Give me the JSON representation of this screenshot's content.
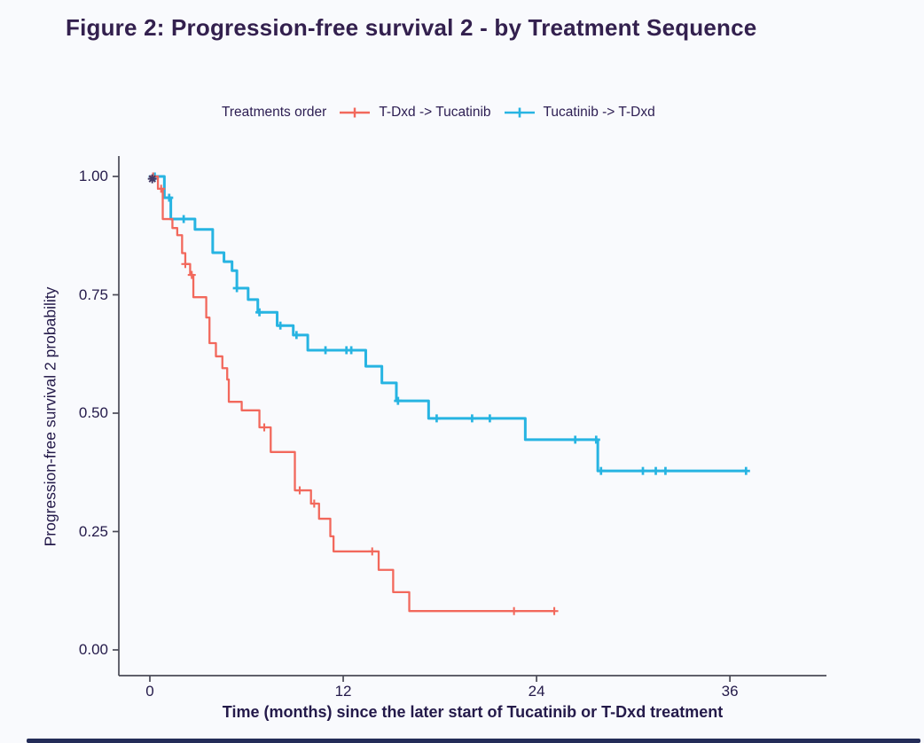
{
  "page": {
    "title": "Figure 2: Progression-free survival 2 - by Treatment Sequence"
  },
  "colors": {
    "title_text": "#33204e",
    "axis_text": "#241a4a",
    "axis_line": "#4a4a56",
    "series_tdxd_first": "#f2685c",
    "series_tucatinib_first": "#27b4e2",
    "bottom_bar": "#232c58"
  },
  "chart_data": {
    "type": "line",
    "subtype": "kaplan-meier-step",
    "title": "Figure 2: Progression-free survival 2 - by Treatment Sequence",
    "legend_title": "Treatments order",
    "legend_position": "top",
    "xlabel": "Time (months) since the later start of Tucatinib or T-Dxd treatment",
    "ylabel": "Progression-free survival 2 probability",
    "xlim": [
      0,
      42
    ],
    "ylim": [
      0.0,
      1.0
    ],
    "grid": false,
    "x_ticks": [
      {
        "label": "0",
        "value": 0
      },
      {
        "label": "12",
        "value": 12
      },
      {
        "label": "24",
        "value": 24
      },
      {
        "label": "36",
        "value": 36
      }
    ],
    "y_ticks": [
      {
        "label": "1.00",
        "value": 1.0
      },
      {
        "label": "0.75",
        "value": 0.75
      },
      {
        "label": "0.50",
        "value": 0.5
      },
      {
        "label": "0.25",
        "value": 0.25
      },
      {
        "label": "0.00",
        "value": 0.0
      }
    ],
    "overlap_marker": {
      "month": 0.15,
      "prob": 0.995,
      "color": "#453a66"
    },
    "series": [
      {
        "name": "Tucatinib -> T-Dxd",
        "color": "#27b4e2",
        "line_width": 3,
        "start": [
          0,
          1.0
        ],
        "steps": [
          [
            0.9,
            0.955
          ],
          [
            1.3,
            0.91
          ],
          [
            2.8,
            0.888
          ],
          [
            3.9,
            0.839
          ],
          [
            4.6,
            0.82
          ],
          [
            5.1,
            0.801
          ],
          [
            5.4,
            0.764
          ],
          [
            6.1,
            0.74
          ],
          [
            6.7,
            0.713
          ],
          [
            7.9,
            0.685
          ],
          [
            8.9,
            0.665
          ],
          [
            9.8,
            0.633
          ],
          [
            13.4,
            0.599
          ],
          [
            14.4,
            0.564
          ],
          [
            15.3,
            0.526
          ],
          [
            17.3,
            0.489
          ],
          [
            23.3,
            0.444
          ],
          [
            27.8,
            0.378
          ]
        ],
        "end": [
          37.0,
          0.378
        ],
        "censors": [
          [
            0.3,
            1.0
          ],
          [
            1.2,
            0.955
          ],
          [
            2.1,
            0.91
          ],
          [
            5.4,
            0.764
          ],
          [
            6.8,
            0.713
          ],
          [
            8.1,
            0.685
          ],
          [
            9.1,
            0.665
          ],
          [
            10.9,
            0.633
          ],
          [
            12.2,
            0.633
          ],
          [
            12.5,
            0.633
          ],
          [
            15.4,
            0.526
          ],
          [
            17.8,
            0.489
          ],
          [
            20.0,
            0.489
          ],
          [
            21.1,
            0.489
          ],
          [
            26.4,
            0.444
          ],
          [
            27.7,
            0.444
          ],
          [
            28.0,
            0.378
          ],
          [
            30.6,
            0.378
          ],
          [
            31.4,
            0.378
          ],
          [
            32.0,
            0.378
          ],
          [
            37.0,
            0.378
          ]
        ]
      },
      {
        "name": "T-Dxd -> Tucatinib",
        "color": "#f2685c",
        "line_width": 2.3,
        "start": [
          0,
          1.0
        ],
        "steps": [
          [
            0.5,
            0.974
          ],
          [
            0.8,
            0.91
          ],
          [
            1.4,
            0.891
          ],
          [
            1.7,
            0.876
          ],
          [
            2.0,
            0.838
          ],
          [
            2.2,
            0.815
          ],
          [
            2.5,
            0.792
          ],
          [
            2.7,
            0.745
          ],
          [
            3.5,
            0.702
          ],
          [
            3.7,
            0.648
          ],
          [
            4.1,
            0.62
          ],
          [
            4.5,
            0.595
          ],
          [
            4.8,
            0.571
          ],
          [
            4.9,
            0.524
          ],
          [
            5.7,
            0.506
          ],
          [
            6.8,
            0.47
          ],
          [
            7.5,
            0.418
          ],
          [
            9.0,
            0.337
          ],
          [
            10.0,
            0.309
          ],
          [
            10.5,
            0.277
          ],
          [
            11.2,
            0.24
          ],
          [
            11.4,
            0.208
          ],
          [
            14.2,
            0.169
          ],
          [
            15.1,
            0.122
          ],
          [
            16.1,
            0.082
          ]
        ],
        "end": [
          25.1,
          0.082
        ],
        "censors": [
          [
            0.2,
            1.0
          ],
          [
            0.7,
            0.974
          ],
          [
            2.2,
            0.815
          ],
          [
            2.6,
            0.792
          ],
          [
            7.1,
            0.47
          ],
          [
            9.3,
            0.337
          ],
          [
            10.2,
            0.309
          ],
          [
            13.8,
            0.208
          ],
          [
            22.6,
            0.082
          ],
          [
            25.1,
            0.082
          ]
        ]
      }
    ]
  },
  "legend": {
    "title": "Treatments order",
    "items": [
      {
        "label": "T-Dxd -> Tucatinib",
        "color": "#f2685c"
      },
      {
        "label": "Tucatinib -> T-Dxd",
        "color": "#27b4e2"
      }
    ]
  }
}
